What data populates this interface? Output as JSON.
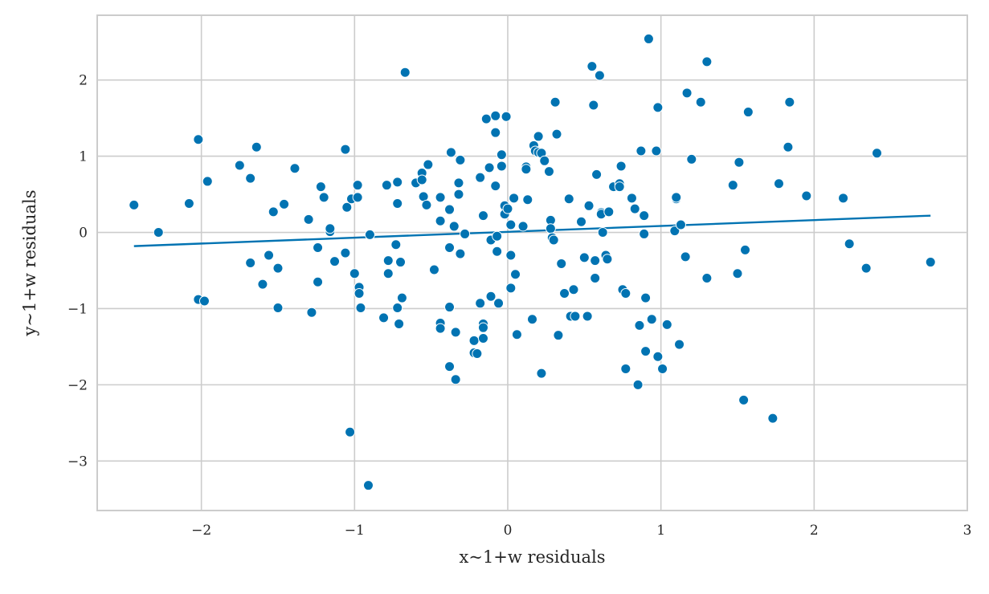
{
  "chart_data": {
    "type": "scatter",
    "xlabel": "x~1+w residuals",
    "ylabel": "y~1+w residuals",
    "xlim": [
      -2.68,
      3.0
    ],
    "ylim": [
      -3.65,
      2.85
    ],
    "grid": true,
    "colors": {
      "points": "#0173b2",
      "line": "#0173b2",
      "grid": "#cccccc",
      "frame": "#cccccc"
    },
    "x_ticks": [
      {
        "value": -2,
        "label": "−2"
      },
      {
        "value": -1,
        "label": "−1"
      },
      {
        "value": 0,
        "label": "0"
      },
      {
        "value": 1,
        "label": "1"
      },
      {
        "value": 2,
        "label": "2"
      },
      {
        "value": 3,
        "label": "3"
      }
    ],
    "y_ticks": [
      {
        "value": -3,
        "label": "−3"
      },
      {
        "value": -2,
        "label": "−2"
      },
      {
        "value": -1,
        "label": "−1"
      },
      {
        "value": 0,
        "label": "0"
      },
      {
        "value": 1,
        "label": "1"
      },
      {
        "value": 2,
        "label": "2"
      }
    ],
    "fit_line": {
      "x": [
        -2.44,
        2.76
      ],
      "y": [
        -0.18,
        0.22
      ]
    },
    "points": [
      [
        -2.44,
        0.36
      ],
      [
        -2.28,
        0.0
      ],
      [
        -2.08,
        0.38
      ],
      [
        -2.02,
        1.22
      ],
      [
        -2.02,
        -0.88
      ],
      [
        -1.98,
        -0.9
      ],
      [
        -1.96,
        0.67
      ],
      [
        -1.75,
        0.88
      ],
      [
        -1.68,
        0.71
      ],
      [
        -1.68,
        -0.4
      ],
      [
        -1.64,
        1.12
      ],
      [
        -1.6,
        -0.68
      ],
      [
        -1.56,
        -0.3
      ],
      [
        -1.53,
        0.27
      ],
      [
        -1.5,
        -0.47
      ],
      [
        -1.5,
        -0.99
      ],
      [
        -1.46,
        0.37
      ],
      [
        -1.39,
        0.84
      ],
      [
        -1.3,
        0.17
      ],
      [
        -1.28,
        -1.05
      ],
      [
        -1.24,
        -0.65
      ],
      [
        -1.24,
        -0.2
      ],
      [
        -1.22,
        0.6
      ],
      [
        -1.2,
        0.46
      ],
      [
        -1.16,
        0.01
      ],
      [
        -1.16,
        0.05
      ],
      [
        -1.13,
        -0.38
      ],
      [
        -1.06,
        1.09
      ],
      [
        -1.06,
        -0.27
      ],
      [
        -1.05,
        0.33
      ],
      [
        -1.03,
        -2.62
      ],
      [
        -1.02,
        0.44
      ],
      [
        -1.0,
        -0.54
      ],
      [
        -0.98,
        0.62
      ],
      [
        -0.98,
        0.46
      ],
      [
        -0.97,
        -0.72
      ],
      [
        -0.97,
        -0.8
      ],
      [
        -0.96,
        -0.99
      ],
      [
        -0.9,
        -0.03
      ],
      [
        -0.91,
        -3.32
      ],
      [
        -0.81,
        -1.12
      ],
      [
        -0.79,
        0.62
      ],
      [
        -0.78,
        -0.37
      ],
      [
        -0.78,
        -0.54
      ],
      [
        -0.72,
        0.66
      ],
      [
        -0.72,
        0.38
      ],
      [
        -0.73,
        -0.16
      ],
      [
        -0.72,
        -0.99
      ],
      [
        -0.71,
        -1.2
      ],
      [
        -0.7,
        -0.39
      ],
      [
        -0.69,
        -0.86
      ],
      [
        -0.67,
        2.1
      ],
      [
        -0.6,
        0.65
      ],
      [
        -0.56,
        0.78
      ],
      [
        -0.56,
        0.69
      ],
      [
        -0.55,
        0.47
      ],
      [
        -0.53,
        0.36
      ],
      [
        -0.52,
        0.89
      ],
      [
        -0.48,
        -0.49
      ],
      [
        -0.44,
        0.46
      ],
      [
        -0.44,
        0.15
      ],
      [
        -0.44,
        -1.19
      ],
      [
        -0.44,
        -1.26
      ],
      [
        -0.37,
        1.05
      ],
      [
        -0.38,
        0.3
      ],
      [
        -0.38,
        -0.2
      ],
      [
        -0.38,
        -0.98
      ],
      [
        -0.38,
        -1.76
      ],
      [
        -0.35,
        0.08
      ],
      [
        -0.34,
        -1.31
      ],
      [
        -0.34,
        -1.93
      ],
      [
        -0.31,
        0.95
      ],
      [
        -0.32,
        0.65
      ],
      [
        -0.32,
        0.5
      ],
      [
        -0.31,
        -0.28
      ],
      [
        -0.28,
        -0.02
      ],
      [
        -0.22,
        -1.42
      ],
      [
        -0.22,
        -1.58
      ],
      [
        -0.2,
        -1.59
      ],
      [
        -0.18,
        0.72
      ],
      [
        -0.18,
        -0.93
      ],
      [
        -0.16,
        -1.2
      ],
      [
        -0.16,
        -1.25
      ],
      [
        -0.16,
        -1.39
      ],
      [
        -0.16,
        0.22
      ],
      [
        -0.14,
        1.49
      ],
      [
        -0.12,
        0.85
      ],
      [
        -0.11,
        -0.1
      ],
      [
        -0.11,
        -0.84
      ],
      [
        -0.08,
        1.53
      ],
      [
        -0.08,
        1.31
      ],
      [
        -0.08,
        0.61
      ],
      [
        -0.07,
        -0.05
      ],
      [
        -0.07,
        -0.25
      ],
      [
        -0.06,
        -0.93
      ],
      [
        -0.04,
        1.02
      ],
      [
        -0.04,
        0.87
      ],
      [
        -0.02,
        0.35
      ],
      [
        -0.02,
        0.24
      ],
      [
        -0.01,
        1.52
      ],
      [
        0.0,
        0.31
      ],
      [
        0.02,
        0.1
      ],
      [
        0.02,
        -0.3
      ],
      [
        0.02,
        -0.73
      ],
      [
        0.04,
        0.45
      ],
      [
        0.05,
        -0.55
      ],
      [
        0.06,
        -1.34
      ],
      [
        0.1,
        0.08
      ],
      [
        0.12,
        0.86
      ],
      [
        0.12,
        0.83
      ],
      [
        0.13,
        0.43
      ],
      [
        0.16,
        -1.14
      ],
      [
        0.17,
        1.14
      ],
      [
        0.18,
        1.07
      ],
      [
        0.2,
        1.26
      ],
      [
        0.2,
        1.05
      ],
      [
        0.22,
        1.04
      ],
      [
        0.22,
        -1.85
      ],
      [
        0.24,
        0.94
      ],
      [
        0.27,
        0.8
      ],
      [
        0.28,
        0.16
      ],
      [
        0.28,
        0.05
      ],
      [
        0.29,
        -0.07
      ],
      [
        0.3,
        -0.1
      ],
      [
        0.31,
        1.71
      ],
      [
        0.32,
        1.29
      ],
      [
        0.33,
        -1.35
      ],
      [
        0.35,
        -0.41
      ],
      [
        0.37,
        -0.8
      ],
      [
        0.4,
        0.44
      ],
      [
        0.41,
        -1.1
      ],
      [
        0.43,
        -0.75
      ],
      [
        0.44,
        -1.1
      ],
      [
        0.48,
        0.14
      ],
      [
        0.5,
        -0.33
      ],
      [
        0.52,
        -1.1
      ],
      [
        0.53,
        0.35
      ],
      [
        0.55,
        2.18
      ],
      [
        0.56,
        1.67
      ],
      [
        0.57,
        -0.37
      ],
      [
        0.57,
        -0.6
      ],
      [
        0.58,
        0.76
      ],
      [
        0.6,
        2.06
      ],
      [
        0.61,
        0.26
      ],
      [
        0.61,
        0.24
      ],
      [
        0.62,
        0.0
      ],
      [
        0.64,
        -0.3
      ],
      [
        0.65,
        -0.35
      ],
      [
        0.66,
        0.27
      ],
      [
        0.69,
        0.6
      ],
      [
        0.73,
        0.64
      ],
      [
        0.73,
        0.6
      ],
      [
        0.74,
        0.87
      ],
      [
        0.75,
        -0.75
      ],
      [
        0.77,
        -0.8
      ],
      [
        0.77,
        -1.79
      ],
      [
        0.81,
        0.45
      ],
      [
        0.83,
        0.31
      ],
      [
        0.85,
        -2.0
      ],
      [
        0.86,
        -1.22
      ],
      [
        0.87,
        1.07
      ],
      [
        0.89,
        0.22
      ],
      [
        0.89,
        -0.02
      ],
      [
        0.9,
        -0.86
      ],
      [
        0.9,
        -1.56
      ],
      [
        0.92,
        2.54
      ],
      [
        0.94,
        -1.14
      ],
      [
        0.97,
        1.07
      ],
      [
        0.98,
        1.64
      ],
      [
        0.98,
        -1.63
      ],
      [
        1.01,
        -1.79
      ],
      [
        1.04,
        -1.21
      ],
      [
        1.09,
        0.02
      ],
      [
        1.1,
        0.44
      ],
      [
        1.1,
        0.46
      ],
      [
        1.12,
        -1.47
      ],
      [
        1.13,
        0.1
      ],
      [
        1.16,
        -0.32
      ],
      [
        1.17,
        1.83
      ],
      [
        1.2,
        0.96
      ],
      [
        1.26,
        1.71
      ],
      [
        1.3,
        2.24
      ],
      [
        1.3,
        -0.6
      ],
      [
        1.47,
        0.62
      ],
      [
        1.5,
        -0.54
      ],
      [
        1.51,
        0.92
      ],
      [
        1.54,
        -2.2
      ],
      [
        1.55,
        -0.23
      ],
      [
        1.57,
        1.58
      ],
      [
        1.73,
        -2.44
      ],
      [
        1.77,
        0.64
      ],
      [
        1.83,
        1.12
      ],
      [
        1.84,
        1.71
      ],
      [
        1.95,
        0.48
      ],
      [
        2.19,
        0.45
      ],
      [
        2.23,
        -0.15
      ],
      [
        2.34,
        -0.47
      ],
      [
        2.41,
        1.04
      ],
      [
        2.76,
        -0.39
      ]
    ]
  }
}
